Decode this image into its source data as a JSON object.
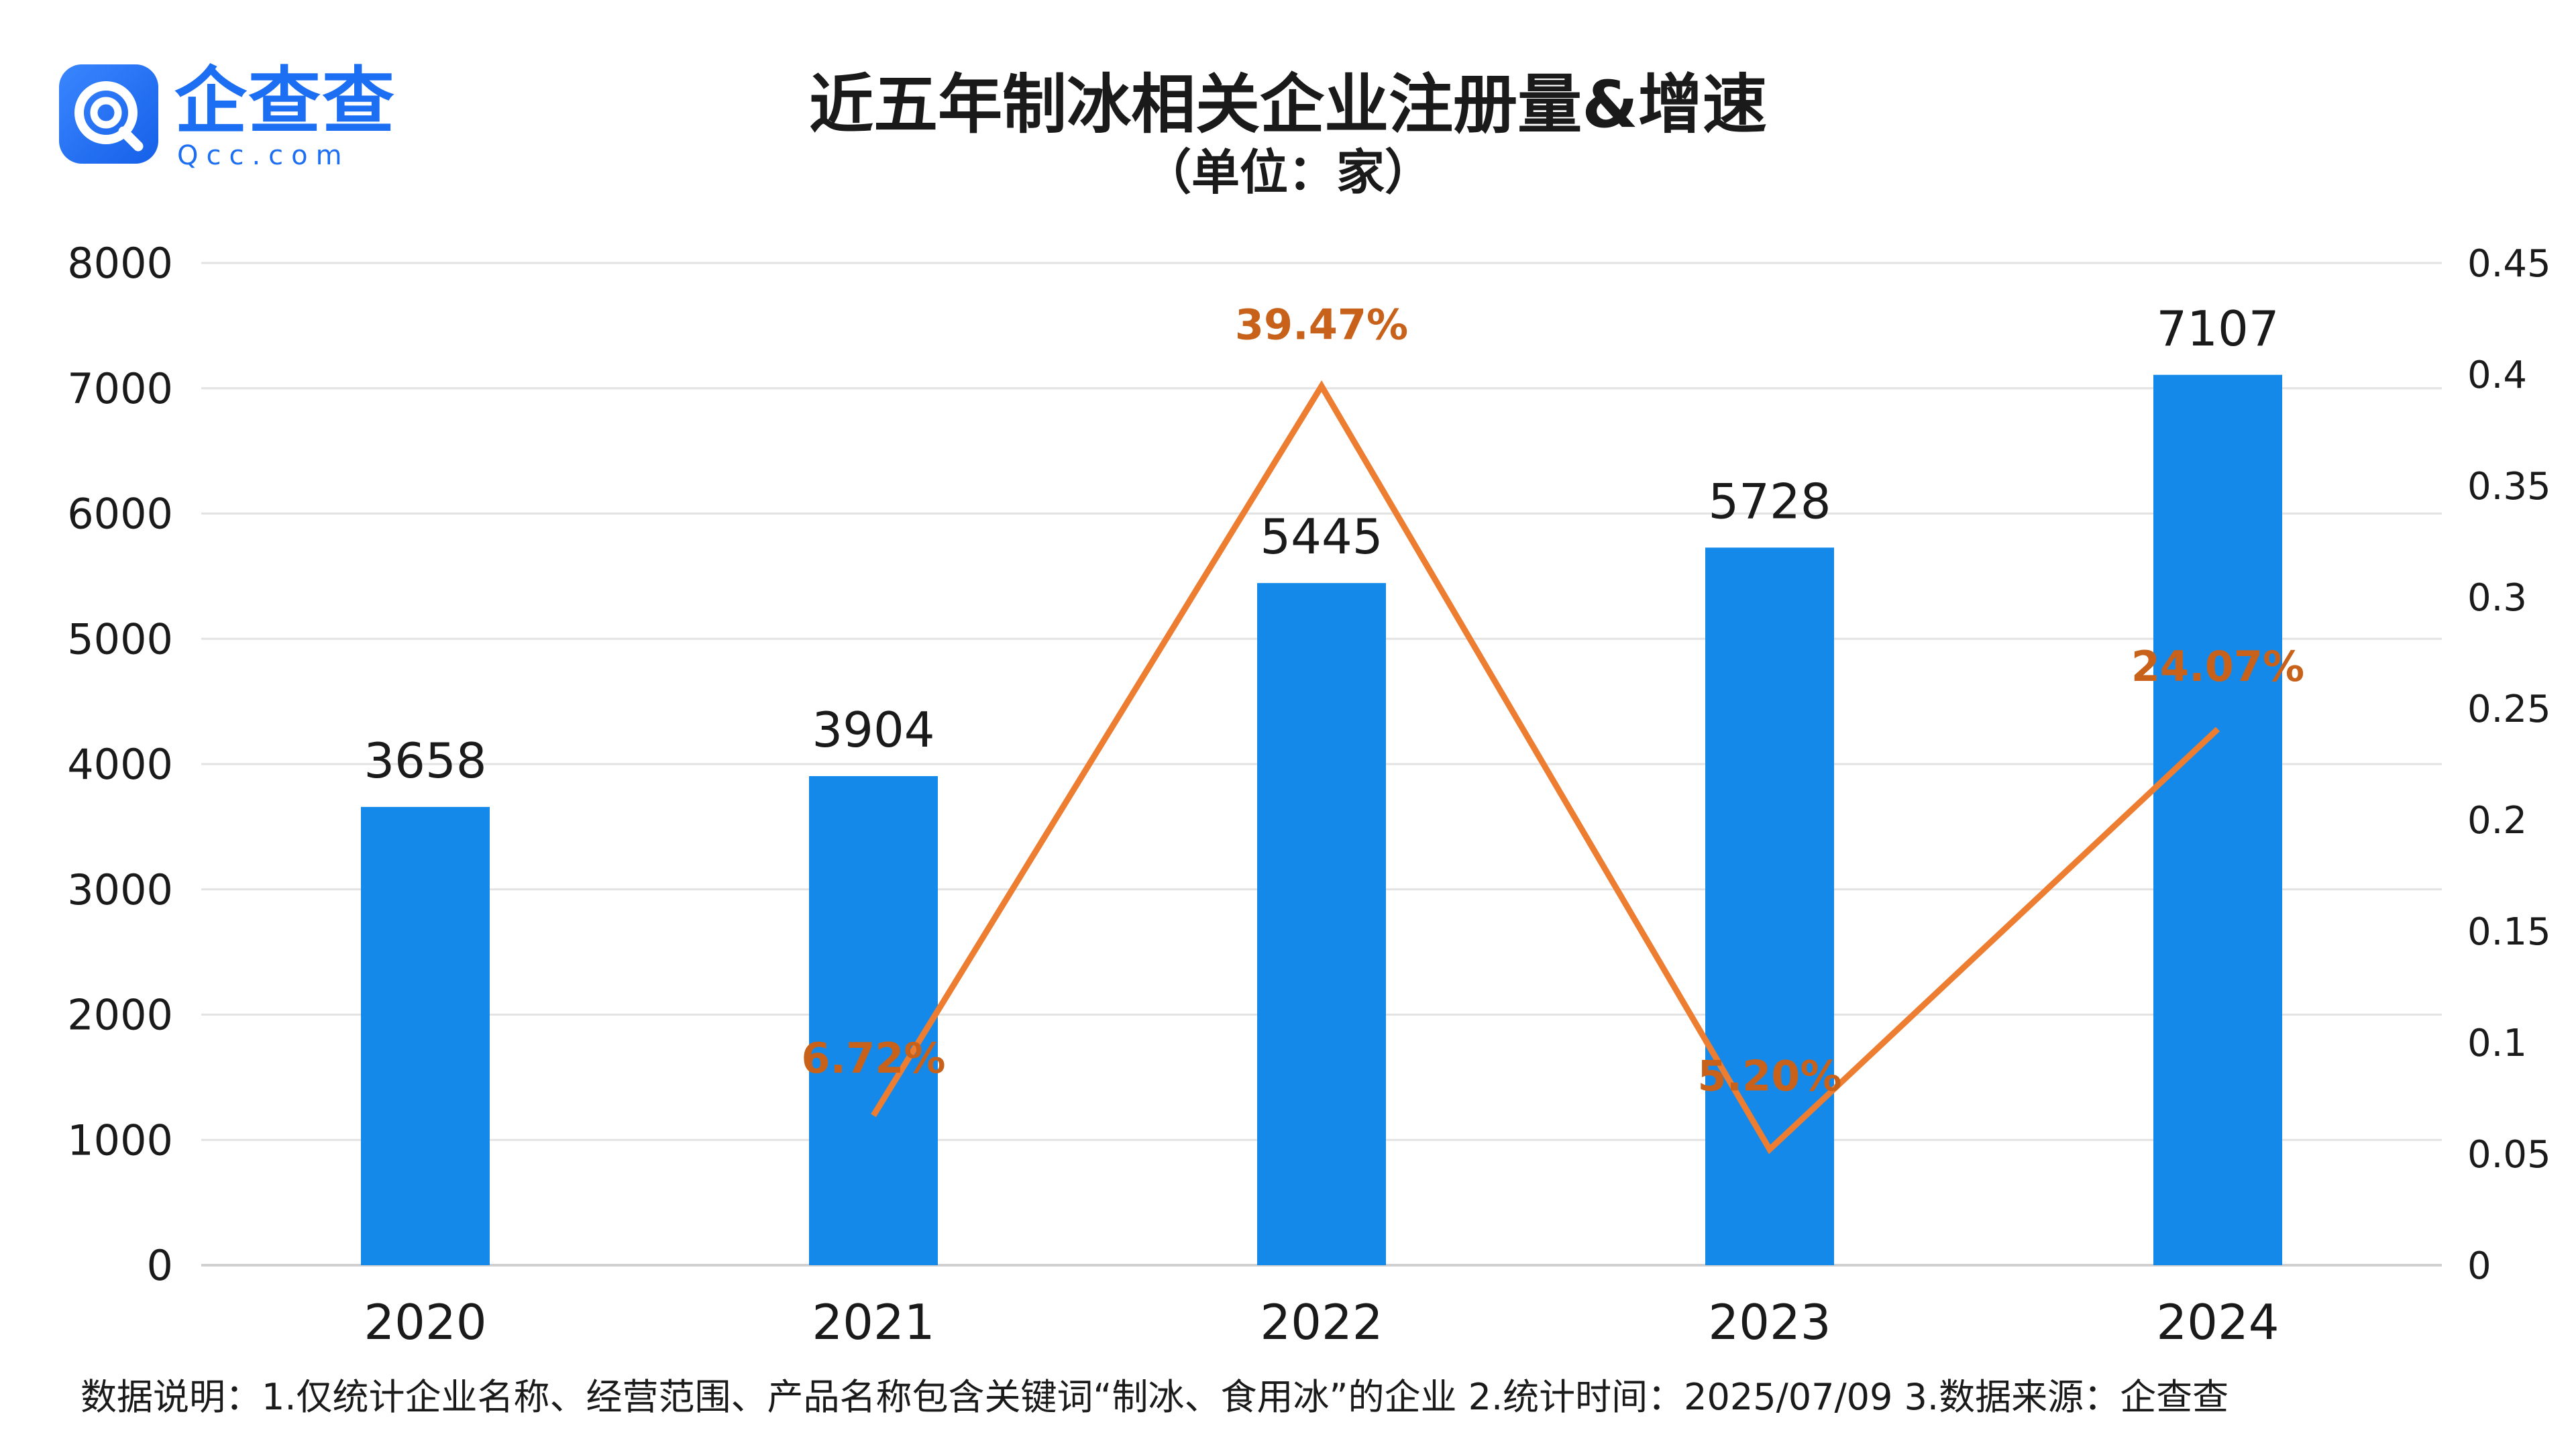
{
  "brand": {
    "name_cn": "企查查",
    "name_en": "Qcc.com",
    "brand_color": "#1c6ef2",
    "icon": "qcc-search-logo-icon"
  },
  "footnote": "数据说明：1.仅统计企业名称、经营范围、产品名称包含关键词“制冰、食用冰”的企业   2.统计时间：2025/07/09   3.数据来源：企查查",
  "chart_data": {
    "type": "bar",
    "title": "近五年制冰相关企业注册量&增速",
    "subtitle": "（单位：家）",
    "categories": [
      "2020",
      "2021",
      "2022",
      "2023",
      "2024"
    ],
    "series": [
      {
        "type": "bar",
        "axis": "left",
        "values": [
          3658,
          3904,
          5445,
          5728,
          7107
        ],
        "labels": [
          "3658",
          "3904",
          "5445",
          "5728",
          "7107"
        ],
        "color": "#1589ea"
      },
      {
        "type": "line",
        "axis": "right",
        "values": [
          null,
          0.0672,
          0.3947,
          0.052,
          0.2407
        ],
        "labels": [
          "",
          "6.72%",
          "39.47%",
          "5.20%",
          "24.07%"
        ],
        "color": "#ed7d31",
        "label_color": "#c8621a"
      }
    ],
    "y_left": {
      "ylim": [
        0,
        8000
      ],
      "ticks": [
        "0",
        "1000",
        "2000",
        "3000",
        "4000",
        "5000",
        "6000",
        "7000",
        "8000"
      ]
    },
    "y_right": {
      "ylim": [
        0,
        0.45
      ],
      "ticks": [
        "0",
        "0.05",
        "0.1",
        "0.15",
        "0.2",
        "0.25",
        "0.3",
        "0.35",
        "0.4",
        "0.45"
      ]
    },
    "grid": true,
    "legend": "none"
  }
}
